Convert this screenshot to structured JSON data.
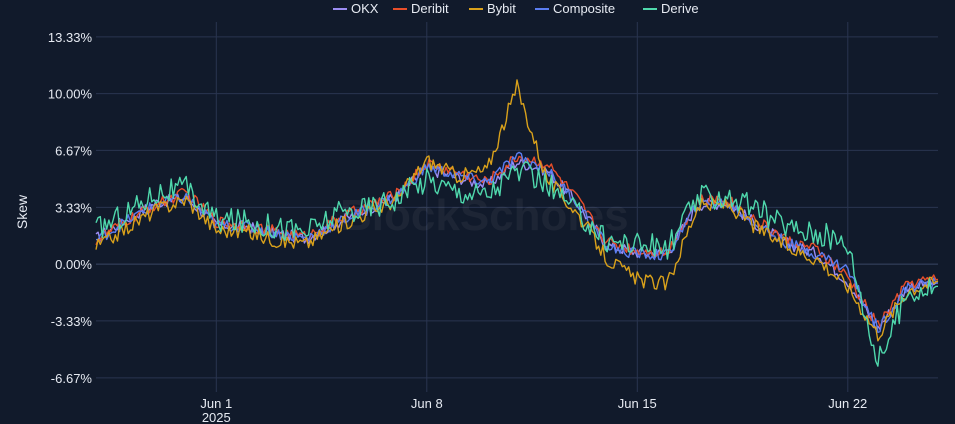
{
  "chart_data": {
    "type": "line",
    "title": "",
    "xlabel": "",
    "ylabel": "Skew",
    "watermark": "BlockScholes",
    "y_unit": "%",
    "ylim": [
      -7.5,
      14.2
    ],
    "xlim": [
      "2025-05-28",
      "2025-06-25"
    ],
    "y_ticks": [
      "13.33%",
      "10.00%",
      "6.67%",
      "3.33%",
      "0.00%",
      "-3.33%",
      "-6.67%"
    ],
    "y_tick_values": [
      13.33,
      10.0,
      6.67,
      3.33,
      0.0,
      -3.33,
      -6.67
    ],
    "x_ticks": [
      {
        "date": "2025-06-01",
        "label": "Jun 1",
        "sublabel": "2025"
      },
      {
        "date": "2025-06-08",
        "label": "Jun 8",
        "sublabel": ""
      },
      {
        "date": "2025-06-15",
        "label": "Jun 15",
        "sublabel": ""
      },
      {
        "date": "2025-06-22",
        "label": "Jun 22",
        "sublabel": ""
      }
    ],
    "grid": true,
    "legend_position": "top-center",
    "x": [
      "2025-05-28",
      "2025-05-29",
      "2025-05-30",
      "2025-05-31",
      "2025-06-01",
      "2025-06-02",
      "2025-06-03",
      "2025-06-04",
      "2025-06-05",
      "2025-06-06",
      "2025-06-07",
      "2025-06-08",
      "2025-06-09",
      "2025-06-10",
      "2025-06-11",
      "2025-06-12",
      "2025-06-13",
      "2025-06-14",
      "2025-06-15",
      "2025-06-16",
      "2025-06-17",
      "2025-06-18",
      "2025-06-19",
      "2025-06-20",
      "2025-06-21",
      "2025-06-22",
      "2025-06-23",
      "2025-06-24",
      "2025-06-25"
    ],
    "series": [
      {
        "name": "OKX",
        "color": "#9b8cf2",
        "values": [
          1.5,
          2.6,
          3.6,
          3.9,
          2.3,
          2.2,
          1.8,
          1.5,
          2.4,
          3.2,
          4.0,
          5.6,
          5.1,
          4.6,
          6.0,
          5.5,
          3.6,
          1.1,
          0.7,
          0.6,
          3.5,
          3.6,
          2.3,
          1.2,
          0.6,
          -1.0,
          -3.8,
          -1.3,
          -1.1
        ]
      },
      {
        "name": "Deribit",
        "color": "#e84e2a",
        "values": [
          1.4,
          2.5,
          3.5,
          4.2,
          2.5,
          2.3,
          1.9,
          1.6,
          2.6,
          3.4,
          4.1,
          5.9,
          5.4,
          4.8,
          6.3,
          5.9,
          3.8,
          1.3,
          0.8,
          0.7,
          3.7,
          3.8,
          2.5,
          1.4,
          0.8,
          -0.8,
          -3.6,
          -1.1,
          -0.9
        ]
      },
      {
        "name": "Bybit",
        "color": "#d9a11b",
        "values": [
          1.0,
          2.1,
          3.2,
          3.8,
          2.0,
          1.9,
          1.4,
          1.2,
          2.2,
          3.0,
          3.8,
          6.1,
          5.2,
          5.5,
          10.4,
          5.0,
          3.0,
          0.3,
          -0.9,
          -1.2,
          3.4,
          3.5,
          2.1,
          1.0,
          0.3,
          -1.3,
          -4.1,
          -1.5,
          -1.0
        ]
      },
      {
        "name": "Composite",
        "color": "#5b7df0",
        "values": [
          1.4,
          2.5,
          3.5,
          3.9,
          2.3,
          2.2,
          1.8,
          1.5,
          2.4,
          3.2,
          4.0,
          5.7,
          5.2,
          4.8,
          6.3,
          5.5,
          3.6,
          1.0,
          0.6,
          0.5,
          3.5,
          3.6,
          2.3,
          1.2,
          0.6,
          -0.3,
          -3.8,
          -1.3,
          -1.1
        ]
      },
      {
        "name": "Derive",
        "color": "#4fd8ac",
        "values": [
          2.0,
          3.0,
          4.2,
          4.4,
          2.6,
          2.5,
          2.2,
          1.9,
          2.9,
          3.3,
          3.9,
          5.0,
          4.3,
          4.1,
          5.5,
          4.7,
          3.0,
          1.4,
          1.2,
          0.9,
          3.9,
          4.0,
          3.2,
          2.2,
          1.8,
          1.2,
          -5.8,
          -1.6,
          -1.3
        ]
      }
    ]
  }
}
